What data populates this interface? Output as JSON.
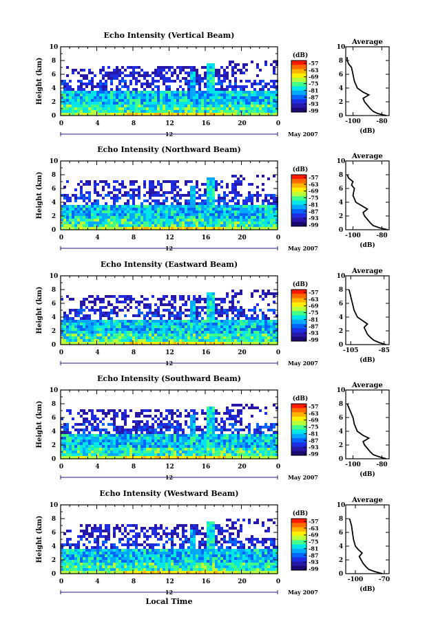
{
  "xlabel_bottom": "Local Time",
  "date_label": "May 2007",
  "day_label": "12",
  "colorbar": {
    "unit": "(dB)",
    "ticks": [
      "-57",
      "-63",
      "-69",
      "-75",
      "-81",
      "-87",
      "-93",
      "-99"
    ],
    "colors": [
      "#ff1a00",
      "#ff6a00",
      "#ffb400",
      "#fff000",
      "#b8ff3c",
      "#40ff8a",
      "#00e6e6",
      "#00a8ff",
      "#0064ff",
      "#1e2ee0",
      "#2818a8",
      "#1a0a70"
    ]
  },
  "chart_data": [
    {
      "type": "heatmap",
      "title": "Echo Intensity (Vertical Beam)",
      "ylabel": "Height (km)",
      "xlim": [
        0,
        24
      ],
      "ylim": [
        0,
        10
      ],
      "xticks": [
        "0",
        "4",
        "8",
        "12",
        "16",
        "20",
        "0"
      ],
      "yticks": [
        "0",
        "2",
        "4",
        "6",
        "8",
        "10"
      ],
      "colorbar_range_db": [
        -99,
        -57
      ],
      "profile": {
        "title": "Average",
        "xlabel": "(dB)",
        "xticks": [
          "-100",
          "-80"
        ],
        "xlim": [
          -105,
          -75
        ],
        "yticks": [
          "0",
          "2",
          "4",
          "6",
          "8",
          "10"
        ],
        "height_km": [
          0,
          0.3,
          0.6,
          1.0,
          1.5,
          2.0,
          2.5,
          3.0,
          3.4,
          4.0,
          5.0,
          6.0,
          7.0,
          7.5,
          8.0,
          8.5
        ],
        "db": [
          -77,
          -83,
          -86,
          -88,
          -90,
          -92,
          -93,
          -89,
          -93,
          -97,
          -99,
          -100,
          -101,
          -103,
          -104,
          -104
        ]
      }
    },
    {
      "type": "heatmap",
      "title": "Echo Intensity (Northward Beam)",
      "ylabel": "Height (km)",
      "xlim": [
        0,
        24
      ],
      "ylim": [
        0,
        10
      ],
      "xticks": [
        "0",
        "4",
        "8",
        "12",
        "16",
        "20",
        "0"
      ],
      "yticks": [
        "0",
        "2",
        "4",
        "6",
        "8",
        "10"
      ],
      "colorbar_range_db": [
        -99,
        -57
      ],
      "profile": {
        "title": "Average",
        "xlabel": "(dB)",
        "xticks": [
          "-100",
          "-80"
        ],
        "xlim": [
          -105,
          -75
        ],
        "yticks": [
          "0",
          "2",
          "4",
          "6",
          "8",
          "10"
        ],
        "height_km": [
          0,
          0.3,
          0.6,
          1.0,
          1.5,
          2.0,
          2.5,
          3.0,
          3.5,
          4.0,
          5.0,
          6.0,
          6.5,
          7.0,
          7.5,
          8.0
        ],
        "db": [
          -76,
          -82,
          -86,
          -88,
          -90,
          -92,
          -93,
          -90,
          -94,
          -98,
          -100,
          -99,
          -101,
          -100,
          -103,
          -104
        ]
      }
    },
    {
      "type": "heatmap",
      "title": "Echo Intensity (Eastward Beam)",
      "ylabel": "Height (km)",
      "xlim": [
        0,
        24
      ],
      "ylim": [
        0,
        10
      ],
      "xticks": [
        "0",
        "4",
        "8",
        "12",
        "16",
        "20",
        "0"
      ],
      "yticks": [
        "0",
        "2",
        "4",
        "6",
        "8",
        "10"
      ],
      "colorbar_range_db": [
        -99,
        -57
      ],
      "profile": {
        "title": "Average",
        "xlabel": "(dB)",
        "xticks": [
          "-105",
          "-85"
        ],
        "xlim": [
          -108,
          -82
        ],
        "yticks": [
          "0",
          "2",
          "4",
          "6",
          "8",
          "10"
        ],
        "height_km": [
          0,
          0.3,
          0.6,
          1.0,
          1.5,
          2.0,
          2.5,
          3.0,
          3.5,
          4.0,
          5.0,
          6.0,
          7.0,
          8.0
        ],
        "db": [
          -84,
          -88,
          -91,
          -93,
          -95,
          -96,
          -97,
          -95,
          -98,
          -101,
          -103,
          -104,
          -105,
          -106
        ]
      }
    },
    {
      "type": "heatmap",
      "title": "Echo Intensity (Southward Beam)",
      "ylabel": "Height (km)",
      "xlim": [
        0,
        24
      ],
      "ylim": [
        0,
        10
      ],
      "xticks": [
        "0",
        "4",
        "8",
        "12",
        "16",
        "20",
        "0"
      ],
      "yticks": [
        "0",
        "2",
        "4",
        "6",
        "8",
        "10"
      ],
      "colorbar_range_db": [
        -99,
        -57
      ],
      "profile": {
        "title": "Average",
        "xlabel": "(dB)",
        "xticks": [
          "-100",
          "-80"
        ],
        "xlim": [
          -105,
          -75
        ],
        "yticks": [
          "0",
          "2",
          "4",
          "6",
          "8",
          "10"
        ],
        "height_km": [
          0,
          0.3,
          0.6,
          1.0,
          1.5,
          2.0,
          2.5,
          3.0,
          3.4,
          4.0,
          5.0,
          6.0,
          7.0,
          8.0
        ],
        "db": [
          -77,
          -82,
          -86,
          -88,
          -90,
          -92,
          -93,
          -89,
          -93,
          -97,
          -99,
          -100,
          -102,
          -104
        ]
      }
    },
    {
      "type": "heatmap",
      "title": "Echo Intensity (Westward Beam)",
      "ylabel": "Height (km)",
      "xlim": [
        0,
        24
      ],
      "ylim": [
        0,
        10
      ],
      "xticks": [
        "0",
        "4",
        "8",
        "12",
        "16",
        "20",
        "0"
      ],
      "yticks": [
        "0",
        "2",
        "4",
        "6",
        "8",
        "10"
      ],
      "colorbar_range_db": [
        -99,
        -57
      ],
      "profile": {
        "title": "Average",
        "xlabel": "(dB)",
        "xticks": [
          "-100",
          "-70"
        ],
        "xlim": [
          -110,
          -65
        ],
        "yticks": [
          "0",
          "2",
          "4",
          "6",
          "8",
          "10"
        ],
        "height_km": [
          0,
          0.3,
          0.6,
          1.0,
          1.5,
          2.0,
          2.5,
          3.0,
          3.5,
          4.0,
          5.0,
          6.0,
          7.0,
          7.5,
          8.0
        ],
        "db": [
          -72,
          -80,
          -86,
          -89,
          -92,
          -94,
          -96,
          -93,
          -97,
          -100,
          -102,
          -103,
          -104,
          -105,
          -106
        ]
      }
    }
  ]
}
